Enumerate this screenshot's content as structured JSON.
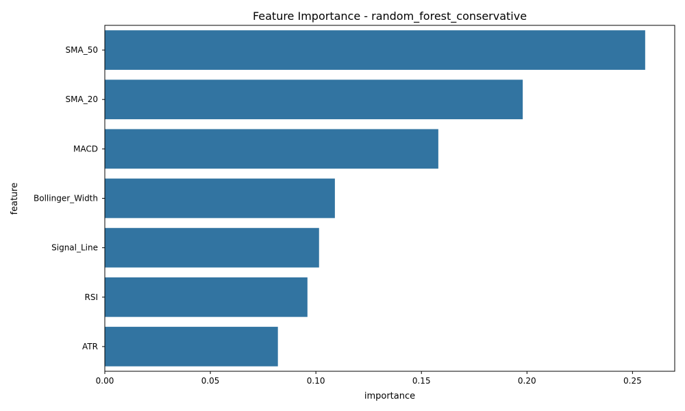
{
  "chart_data": {
    "type": "bar",
    "orientation": "horizontal",
    "title": "Feature Importance - random_forest_conservative",
    "xlabel": "importance",
    "ylabel": "feature",
    "categories": [
      "SMA_50",
      "SMA_20",
      "MACD",
      "Bollinger_Width",
      "Signal_Line",
      "RSI",
      "ATR"
    ],
    "values": [
      0.256,
      0.198,
      0.158,
      0.109,
      0.1015,
      0.096,
      0.082
    ],
    "xlim": [
      0,
      0.27
    ],
    "xticks": [
      0.0,
      0.05,
      0.1,
      0.15,
      0.2,
      0.25
    ],
    "xtick_labels": [
      "0.00",
      "0.05",
      "0.10",
      "0.15",
      "0.20",
      "0.25"
    ],
    "bar_color": "#3274a1",
    "grid": false,
    "legend": "none"
  }
}
